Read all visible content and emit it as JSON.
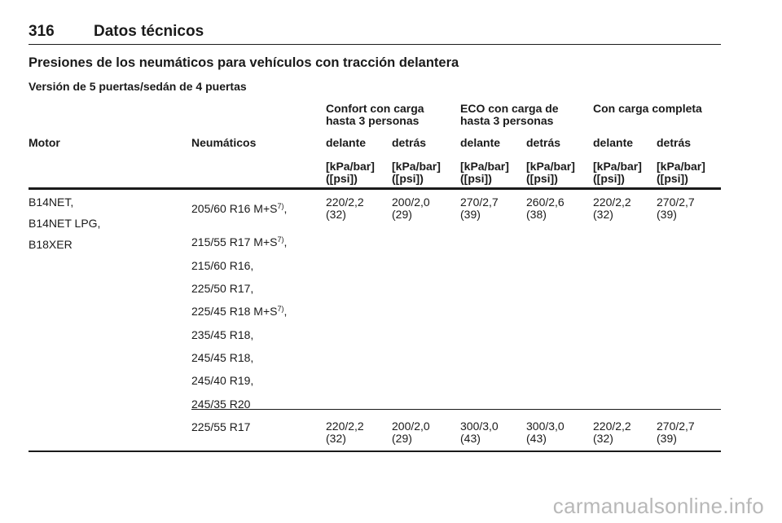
{
  "header": {
    "page_number": "316",
    "title": "Datos técnicos"
  },
  "section_title": "Presiones de los neumáticos para vehículos con tracción delantera",
  "subsection_title": "Versión de 5 puertas/sedán de 4 puertas",
  "table": {
    "groups": [
      {
        "line1": "Confort con carga",
        "line2": "hasta 3 personas"
      },
      {
        "line1": "ECO con carga de",
        "line2": "hasta 3 personas"
      },
      {
        "line1": "Con carga completa",
        "line2": ""
      }
    ],
    "col_motor": "Motor",
    "col_tyres": "Neumáticos",
    "sub_cols": [
      "delante",
      "detrás",
      "delante",
      "detrás",
      "delante",
      "detrás"
    ],
    "unit_line1": "[kPa/bar]",
    "unit_line2": "([psi])",
    "motors": [
      "B14NET,",
      "B14NET LPG,",
      "B18XER"
    ],
    "tyres_group1": [
      {
        "size": "205/60 R16 M+S",
        "note": "7)",
        "suffix": ","
      },
      {
        "size": "215/55 R17 M+S",
        "note": "7)",
        "suffix": ","
      },
      {
        "size": "215/60 R16,",
        "note": "",
        "suffix": ""
      },
      {
        "size": "225/50 R17,",
        "note": "",
        "suffix": ""
      },
      {
        "size": "225/45 R18 M+S",
        "note": "7)",
        "suffix": ","
      },
      {
        "size": "235/45 R18,",
        "note": "",
        "suffix": ""
      },
      {
        "size": "245/45 R18,",
        "note": "",
        "suffix": ""
      },
      {
        "size": "245/40 R19,",
        "note": "",
        "suffix": ""
      },
      {
        "size": "245/35 R20",
        "note": "",
        "suffix": ""
      }
    ],
    "pressures_group1": [
      {
        "bar": "220/2,2",
        "psi": "(32)"
      },
      {
        "bar": "200/2,0",
        "psi": "(29)"
      },
      {
        "bar": "270/2,7",
        "psi": "(39)"
      },
      {
        "bar": "260/2,6",
        "psi": "(38)"
      },
      {
        "bar": "220/2,2",
        "psi": "(32)"
      },
      {
        "bar": "270/2,7",
        "psi": "(39)"
      }
    ],
    "tyre_group2": "225/55 R17",
    "pressures_group2": [
      {
        "bar": "220/2,2",
        "psi": "(32)"
      },
      {
        "bar": "200/2,0",
        "psi": "(29)"
      },
      {
        "bar": "300/3,0",
        "psi": "(43)"
      },
      {
        "bar": "300/3,0",
        "psi": "(43)"
      },
      {
        "bar": "220/2,2",
        "psi": "(32)"
      },
      {
        "bar": "270/2,7",
        "psi": "(39)"
      }
    ]
  },
  "watermark": "carmanualsonline.info"
}
